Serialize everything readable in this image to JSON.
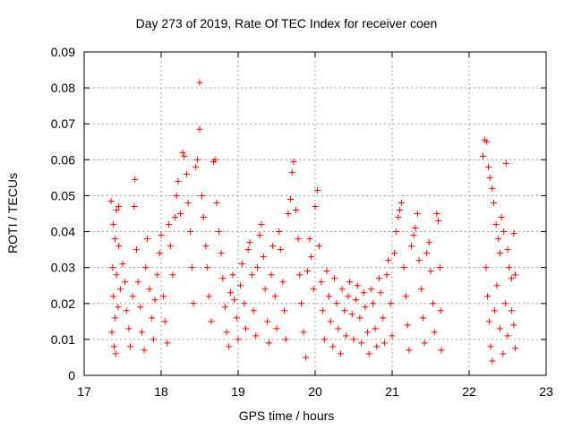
{
  "chart_data": {
    "type": "scatter",
    "title": "Day 273 of 2019, Rate Of TEC Index for receiver coen",
    "xlabel": "GPS time / hours",
    "ylabel": "ROTI / TECUs",
    "xlim": [
      17,
      23
    ],
    "ylim": [
      0,
      0.09
    ],
    "xticks": [
      17,
      18,
      19,
      20,
      21,
      22,
      23
    ],
    "yticks": [
      0,
      0.01,
      0.02,
      0.03,
      0.04,
      0.05,
      0.06,
      0.07,
      0.08,
      0.09
    ],
    "xtick_labels": [
      "17",
      "18",
      "19",
      "20",
      "21",
      "22",
      "23"
    ],
    "ytick_labels": [
      "0",
      "0.01",
      "0.02",
      "0.03",
      "0.04",
      "0.05",
      "0.06",
      "0.07",
      "0.08",
      "0.09"
    ],
    "grid": true,
    "marker": "+",
    "color": "#ff0000",
    "series": [
      {
        "name": "ROTI",
        "points": [
          [
            17.35,
            0.0485
          ],
          [
            17.38,
            0.042
          ],
          [
            17.42,
            0.046
          ],
          [
            17.45,
            0.047
          ],
          [
            17.4,
            0.038
          ],
          [
            17.45,
            0.036
          ],
          [
            17.37,
            0.03
          ],
          [
            17.42,
            0.028
          ],
          [
            17.38,
            0.022
          ],
          [
            17.4,
            0.016
          ],
          [
            17.36,
            0.012
          ],
          [
            17.39,
            0.008
          ],
          [
            17.41,
            0.006
          ],
          [
            17.44,
            0.019
          ],
          [
            17.47,
            0.024
          ],
          [
            17.5,
            0.031
          ],
          [
            17.53,
            0.026
          ],
          [
            17.55,
            0.018
          ],
          [
            17.58,
            0.013
          ],
          [
            17.6,
            0.008
          ],
          [
            17.63,
            0.022
          ],
          [
            17.65,
            0.047
          ],
          [
            17.66,
            0.0545
          ],
          [
            17.68,
            0.035
          ],
          [
            17.7,
            0.026
          ],
          [
            17.73,
            0.019
          ],
          [
            17.75,
            0.012
          ],
          [
            17.78,
            0.007
          ],
          [
            17.8,
            0.03
          ],
          [
            17.82,
            0.038
          ],
          [
            17.85,
            0.024
          ],
          [
            17.88,
            0.016
          ],
          [
            17.9,
            0.01
          ],
          [
            17.92,
            0.021
          ],
          [
            17.95,
            0.028
          ],
          [
            17.98,
            0.034
          ],
          [
            18.0,
            0.039
          ],
          [
            18.03,
            0.022
          ],
          [
            18.05,
            0.015
          ],
          [
            18.08,
            0.009
          ],
          [
            18.1,
            0.042
          ],
          [
            18.12,
            0.036
          ],
          [
            18.15,
            0.028
          ],
          [
            18.18,
            0.044
          ],
          [
            18.2,
            0.05
          ],
          [
            18.22,
            0.054
          ],
          [
            18.25,
            0.045
          ],
          [
            18.28,
            0.062
          ],
          [
            18.3,
            0.061
          ],
          [
            18.33,
            0.056
          ],
          [
            18.35,
            0.048
          ],
          [
            18.38,
            0.04
          ],
          [
            18.4,
            0.03
          ],
          [
            18.42,
            0.02
          ],
          [
            18.45,
            0.058
          ],
          [
            18.47,
            0.06
          ],
          [
            18.5,
            0.0685
          ],
          [
            18.5,
            0.0815
          ],
          [
            18.53,
            0.05
          ],
          [
            18.55,
            0.044
          ],
          [
            18.58,
            0.036
          ],
          [
            18.6,
            0.03
          ],
          [
            18.62,
            0.022
          ],
          [
            18.65,
            0.015
          ],
          [
            18.68,
            0.0595
          ],
          [
            18.7,
            0.06
          ],
          [
            18.72,
            0.048
          ],
          [
            18.75,
            0.04
          ],
          [
            18.78,
            0.034
          ],
          [
            18.8,
            0.027
          ],
          [
            18.83,
            0.019
          ],
          [
            18.85,
            0.012
          ],
          [
            18.88,
            0.008
          ],
          [
            18.9,
            0.023
          ],
          [
            18.93,
            0.028
          ],
          [
            18.95,
            0.021
          ],
          [
            18.98,
            0.016
          ],
          [
            19.0,
            0.01
          ],
          [
            19.03,
            0.025
          ],
          [
            19.05,
            0.031
          ],
          [
            19.08,
            0.02
          ],
          [
            19.1,
            0.013
          ],
          [
            19.13,
            0.035
          ],
          [
            19.15,
            0.037
          ],
          [
            19.18,
            0.028
          ],
          [
            19.2,
            0.018
          ],
          [
            19.23,
            0.011
          ],
          [
            19.25,
            0.03
          ],
          [
            19.28,
            0.039
          ],
          [
            19.3,
            0.042
          ],
          [
            19.33,
            0.033
          ],
          [
            19.35,
            0.024
          ],
          [
            19.38,
            0.015
          ],
          [
            19.4,
            0.009
          ],
          [
            19.43,
            0.028
          ],
          [
            19.45,
            0.036
          ],
          [
            19.48,
            0.022
          ],
          [
            19.5,
            0.013
          ],
          [
            19.53,
            0.04
          ],
          [
            19.55,
            0.035
          ],
          [
            19.58,
            0.026
          ],
          [
            19.6,
            0.018
          ],
          [
            19.62,
            0.01
          ],
          [
            19.65,
            0.045
          ],
          [
            19.68,
            0.049
          ],
          [
            19.7,
            0.0565
          ],
          [
            19.72,
            0.0595
          ],
          [
            19.75,
            0.046
          ],
          [
            19.78,
            0.038
          ],
          [
            19.8,
            0.028
          ],
          [
            19.82,
            0.02
          ],
          [
            19.85,
            0.012
          ],
          [
            19.88,
            0.005
          ],
          [
            19.9,
            0.029
          ],
          [
            19.93,
            0.038
          ],
          [
            19.95,
            0.033
          ],
          [
            19.98,
            0.024
          ],
          [
            20.0,
            0.047
          ],
          [
            20.03,
            0.0515
          ],
          [
            20.05,
            0.036
          ],
          [
            20.08,
            0.026
          ],
          [
            20.1,
            0.018
          ],
          [
            20.12,
            0.01
          ],
          [
            20.15,
            0.029
          ],
          [
            20.18,
            0.022
          ],
          [
            20.2,
            0.015
          ],
          [
            20.23,
            0.008
          ],
          [
            20.25,
            0.027
          ],
          [
            20.28,
            0.02
          ],
          [
            20.3,
            0.013
          ],
          [
            20.33,
            0.006
          ],
          [
            20.35,
            0.024
          ],
          [
            20.38,
            0.018
          ],
          [
            20.4,
            0.011
          ],
          [
            20.43,
            0.022
          ],
          [
            20.45,
            0.026
          ],
          [
            20.48,
            0.017
          ],
          [
            20.5,
            0.01
          ],
          [
            20.53,
            0.021
          ],
          [
            20.55,
            0.025
          ],
          [
            20.58,
            0.016
          ],
          [
            20.6,
            0.009
          ],
          [
            20.63,
            0.023
          ],
          [
            20.65,
            0.019
          ],
          [
            20.68,
            0.012
          ],
          [
            20.7,
            0.006
          ],
          [
            20.73,
            0.024
          ],
          [
            20.75,
            0.02
          ],
          [
            20.78,
            0.013
          ],
          [
            20.8,
            0.008
          ],
          [
            20.83,
            0.027
          ],
          [
            20.85,
            0.023
          ],
          [
            20.88,
            0.016
          ],
          [
            20.9,
            0.009
          ],
          [
            20.93,
            0.028
          ],
          [
            20.95,
            0.032
          ],
          [
            20.98,
            0.02
          ],
          [
            21.0,
            0.011
          ],
          [
            21.03,
            0.034
          ],
          [
            21.05,
            0.04
          ],
          [
            21.08,
            0.044
          ],
          [
            21.1,
            0.046
          ],
          [
            21.12,
            0.048
          ],
          [
            21.15,
            0.03
          ],
          [
            21.18,
            0.022
          ],
          [
            21.2,
            0.014
          ],
          [
            21.22,
            0.007
          ],
          [
            21.25,
            0.036
          ],
          [
            21.28,
            0.039
          ],
          [
            21.3,
            0.041
          ],
          [
            21.33,
            0.045
          ],
          [
            21.35,
            0.032
          ],
          [
            21.38,
            0.024
          ],
          [
            21.4,
            0.016
          ],
          [
            21.42,
            0.009
          ],
          [
            21.45,
            0.034
          ],
          [
            21.48,
            0.037
          ],
          [
            21.5,
            0.029
          ],
          [
            21.53,
            0.02
          ],
          [
            21.55,
            0.012
          ],
          [
            21.58,
            0.045
          ],
          [
            21.6,
            0.043
          ],
          [
            21.62,
            0.03
          ],
          [
            21.63,
            0.018
          ],
          [
            21.64,
            0.007
          ],
          [
            22.18,
            0.061
          ],
          [
            22.2,
            0.0655
          ],
          [
            22.23,
            0.065
          ],
          [
            22.25,
            0.058
          ],
          [
            22.27,
            0.055
          ],
          [
            22.3,
            0.052
          ],
          [
            22.32,
            0.048
          ],
          [
            22.35,
            0.042
          ],
          [
            22.38,
            0.038
          ],
          [
            22.4,
            0.034
          ],
          [
            22.42,
            0.044
          ],
          [
            22.45,
            0.04
          ],
          [
            22.48,
            0.059
          ],
          [
            22.5,
            0.035
          ],
          [
            22.52,
            0.03
          ],
          [
            22.55,
            0.027
          ],
          [
            22.58,
            0.0395
          ],
          [
            22.6,
            0.028
          ],
          [
            22.22,
            0.03
          ],
          [
            22.24,
            0.022
          ],
          [
            22.26,
            0.015
          ],
          [
            22.28,
            0.008
          ],
          [
            22.3,
            0.004
          ],
          [
            22.33,
            0.018
          ],
          [
            22.36,
            0.025
          ],
          [
            22.4,
            0.013
          ],
          [
            22.44,
            0.006
          ],
          [
            22.47,
            0.02
          ],
          [
            22.5,
            0.011
          ],
          [
            22.55,
            0.018
          ],
          [
            22.58,
            0.014
          ],
          [
            22.6,
            0.0075
          ]
        ]
      }
    ]
  }
}
